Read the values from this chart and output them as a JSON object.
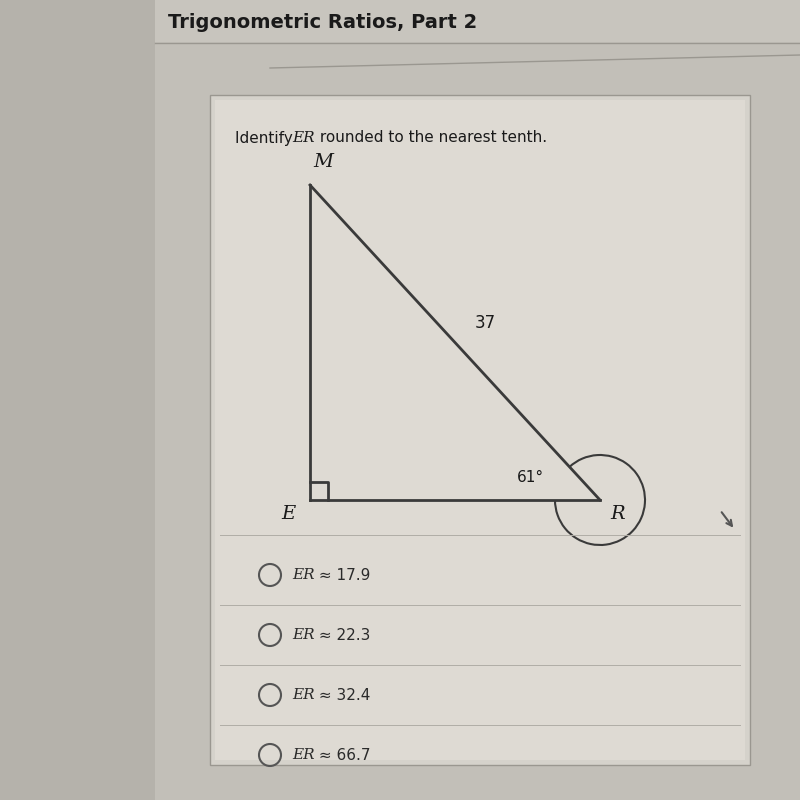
{
  "title": "Trigonometric Ratios, Part 2",
  "label_M": "M",
  "label_E": "E",
  "label_R": "R",
  "side_MR_label": "37",
  "angle_R_label": "61°",
  "choices": [
    "ER ≈ 17.9",
    "ER ≈ 22.3",
    "ER ≈ 32.4",
    "ER ≈ 66.7"
  ],
  "bg_left_color": "#c8c5be",
  "bg_right_color": "#b8b5ae",
  "title_bg_color": "#ccc9c2",
  "content_bg_color": "#c5c2bb",
  "card_bg_color": "#d8d5ce",
  "inner_card_color": "#dedad3",
  "line_color": "#3a3a3a",
  "text_color": "#1a1a1a",
  "choice_text_color": "#2a2a2a",
  "divider_color": "#b0ada6"
}
